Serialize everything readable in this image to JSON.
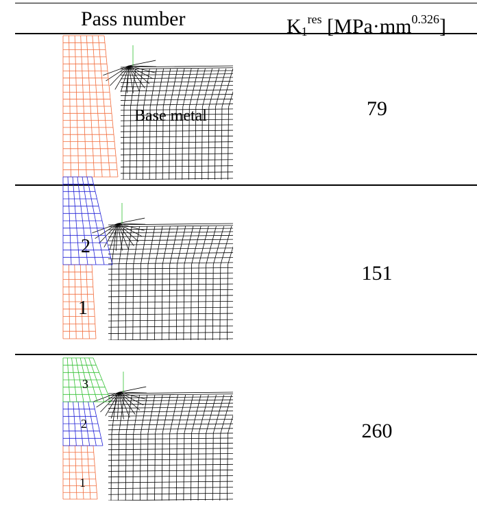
{
  "header": {
    "col1": "Pass number",
    "col2": {
      "base": "K",
      "sub": "1",
      "sup": "res",
      "unit_pre": " [MPa·mm",
      "unit_sup": "0.326",
      "unit_post": "]"
    }
  },
  "rows": [
    {
      "value": "79",
      "labels": [
        "Base metal"
      ],
      "pass_colors": [
        "#f26b3a"
      ]
    },
    {
      "value": "151",
      "labels": [
        "2",
        "1"
      ],
      "pass_colors": [
        "#f26b3a",
        "#1f1fd6"
      ]
    },
    {
      "value": "260",
      "labels": [
        "3",
        "2",
        "1"
      ],
      "pass_colors": [
        "#f26b3a",
        "#1f1fd6",
        "#2fbf2f"
      ]
    }
  ],
  "colors": {
    "base_metal_mesh": "#000000",
    "notch_line": "#2fbf2f"
  }
}
